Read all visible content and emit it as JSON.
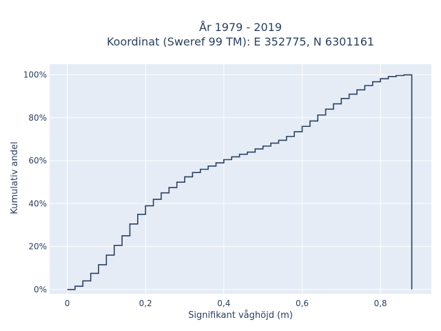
{
  "chart_data": {
    "type": "line",
    "title": "År 1979 - 2019",
    "subtitle": "Koordinat (Sweref 99 TM): E 352775, N 6301161",
    "xlabel": "Signifikant våghöjd (m)",
    "ylabel": "Kumulativ andel",
    "xlim": [
      -0.045,
      0.93
    ],
    "ylim": [
      -0.02,
      1.05
    ],
    "x_ticks": [
      0,
      0.2,
      0.4,
      0.6,
      0.8
    ],
    "x_tick_labels": [
      "0",
      "0,2",
      "0,4",
      "0,6",
      "0,8"
    ],
    "y_ticks": [
      0,
      0.2,
      0.4,
      0.6,
      0.8,
      1.0
    ],
    "y_tick_labels": [
      "0%",
      "20%",
      "40%",
      "60%",
      "80%",
      "100%"
    ],
    "grid": true,
    "line_shape": "step",
    "x": [
      0.0,
      0.02,
      0.04,
      0.06,
      0.08,
      0.1,
      0.12,
      0.14,
      0.16,
      0.18,
      0.2,
      0.22,
      0.24,
      0.26,
      0.28,
      0.3,
      0.32,
      0.34,
      0.36,
      0.38,
      0.4,
      0.42,
      0.44,
      0.46,
      0.48,
      0.5,
      0.52,
      0.54,
      0.56,
      0.58,
      0.6,
      0.62,
      0.64,
      0.66,
      0.68,
      0.7,
      0.72,
      0.74,
      0.76,
      0.78,
      0.8,
      0.82,
      0.84,
      0.86,
      0.88
    ],
    "y": [
      0.0,
      0.015,
      0.04,
      0.075,
      0.115,
      0.16,
      0.205,
      0.25,
      0.305,
      0.35,
      0.39,
      0.42,
      0.45,
      0.475,
      0.5,
      0.525,
      0.545,
      0.56,
      0.575,
      0.59,
      0.605,
      0.618,
      0.63,
      0.64,
      0.655,
      0.668,
      0.682,
      0.695,
      0.713,
      0.735,
      0.76,
      0.785,
      0.813,
      0.84,
      0.865,
      0.89,
      0.91,
      0.93,
      0.95,
      0.968,
      0.982,
      0.992,
      0.997,
      1.0,
      0.0
    ],
    "line_color": "#2a3f5f",
    "plot_background": "#e5ecf6"
  }
}
